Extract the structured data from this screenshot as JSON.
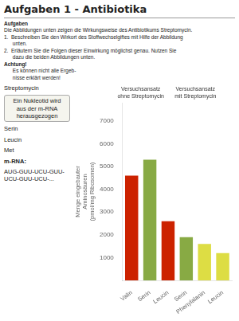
{
  "chart_data": {
    "type": "bar",
    "title": "Aufgaben 1 - Antibiotika",
    "ylabel": "Menge eingebauter\nAminosäuren\n(pmol/mg Ribosomen)",
    "categories": [
      "Valin",
      "Serin",
      "Leucin",
      "Serin",
      "Phenylalanin",
      "Leucin"
    ],
    "values": [
      4600,
      5300,
      2600,
      1900,
      1600,
      1200
    ],
    "colors": [
      "#cc2200",
      "#88aa44",
      "#cc2200",
      "#88aa44",
      "#dddd44",
      "#dddd44"
    ],
    "groups": [
      {
        "label": "Versuchsansatz\nohne Streptomycin",
        "count": 2
      },
      {
        "label": "Versuchsansatz\nmit Streptomycin",
        "count": 4
      }
    ],
    "ylim": [
      0,
      7800
    ],
    "yticks": [
      1000,
      2000,
      3000,
      4000,
      5000,
      6000,
      7000
    ],
    "grid": false,
    "annotations": {
      "text": [
        {
          "text": "Aufgaben",
          "bold": true
        },
        {
          "text": "Die Abbildungen unten zeigen die Wirkungsweise des Antibiotikums Streptomycin."
        },
        {
          "text": "1.  Beschreiben Sie den Wirkort des Stoffwechselgiftes mit Hilfe der Abbildung"
        },
        {
          "text": "      unten."
        },
        {
          "text": "2.  Erläutern Sie die Folgen dieser Einwirkung möglichst genau. Nutzen Sie"
        },
        {
          "text": "      dazu die beiden Abbildungen unten. "
        },
        {
          "text": "Achtung!",
          "bold": true
        },
        {
          "text": "      Es können nicht alle Ergeb-"
        },
        {
          "text": "      nisse erklärt werden!"
        }
      ],
      "figure": [
        {
          "text": "Streptomycin"
        },
        {
          "text": "Ein Nukleotid wird\naus der m-RNA\nherausgezogen",
          "boxed": true
        },
        {
          "text": "Serin"
        },
        {
          "text": "Leucin"
        },
        {
          "text": "Met"
        },
        {
          "text": "m-RNA:",
          "bold": true
        },
        {
          "text": "AUG-GUU-UCU-GUU-UCU-GUU-UCU-..."
        }
      ]
    }
  }
}
